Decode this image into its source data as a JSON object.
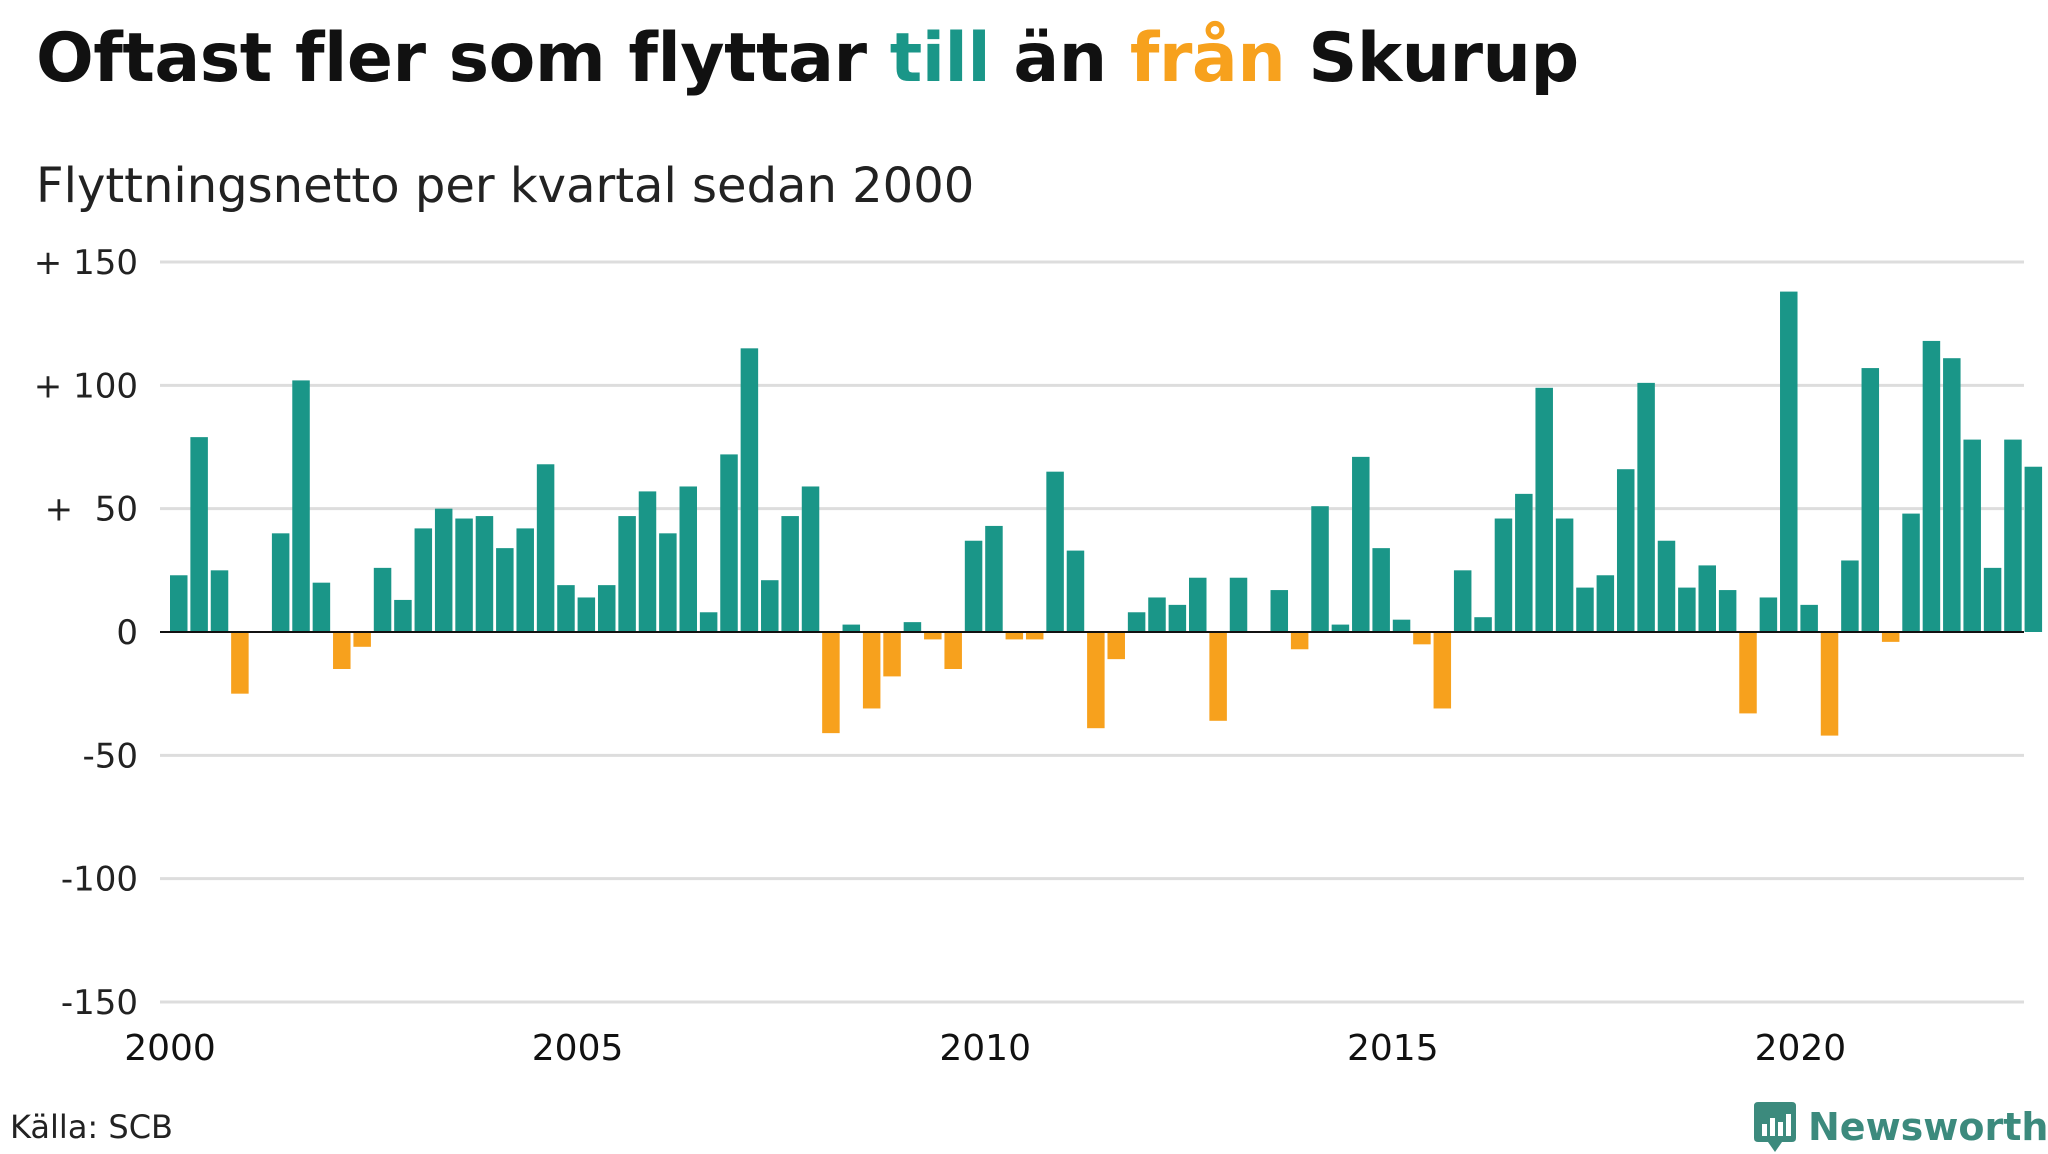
{
  "title": {
    "part1": "Oftast fler som flyttar ",
    "part2": "till",
    "part3": " än ",
    "part4": "från",
    "part5": " Skurup"
  },
  "subtitle": "Flyttningsnetto per kvartal sedan 2000",
  "source": "Källa: SCB",
  "logo_text": "Newsworthy",
  "logo_icon": "newsworthy-logo-icon",
  "colors": {
    "positive": "#1a9688",
    "negative": "#f7a11d",
    "grid": "#dddddd",
    "zero_line": "#111111",
    "logo": "#3c8a7d"
  },
  "chart_data": {
    "type": "bar",
    "title": "Oftast fler som flyttar till än från Skurup",
    "subtitle": "Flyttningsnetto per kvartal sedan 2000",
    "ylim": [
      -150,
      150
    ],
    "y_ticks": [
      150,
      100,
      50,
      0,
      -50,
      -100,
      -150
    ],
    "y_tick_labels": [
      "+ 150",
      "+ 100",
      "+  50",
      "0",
      "-50",
      "-100",
      "-150"
    ],
    "x_tick_labels": [
      "2000",
      "2005",
      "2010",
      "2015",
      "2020"
    ],
    "grid": true,
    "start": "2000 Q1",
    "values": [
      23,
      79,
      25,
      -25,
      0,
      40,
      102,
      20,
      -15,
      -6,
      26,
      13,
      42,
      50,
      46,
      47,
      34,
      42,
      68,
      19,
      14,
      19,
      47,
      57,
      40,
      59,
      8,
      72,
      115,
      21,
      47,
      59,
      -41,
      3,
      -31,
      -18,
      4,
      -3,
      -15,
      37,
      43,
      -3,
      -3,
      65,
      33,
      -39,
      -11,
      8,
      14,
      11,
      22,
      -36,
      22,
      0,
      17,
      -7,
      51,
      3,
      71,
      34,
      5,
      -5,
      -31,
      25,
      6,
      46,
      56,
      99,
      46,
      18,
      23,
      66,
      101,
      37,
      18,
      27,
      17,
      -33,
      14,
      138,
      11,
      -42,
      29,
      107,
      -4,
      48,
      118,
      111,
      78,
      26,
      78,
      67
    ]
  }
}
